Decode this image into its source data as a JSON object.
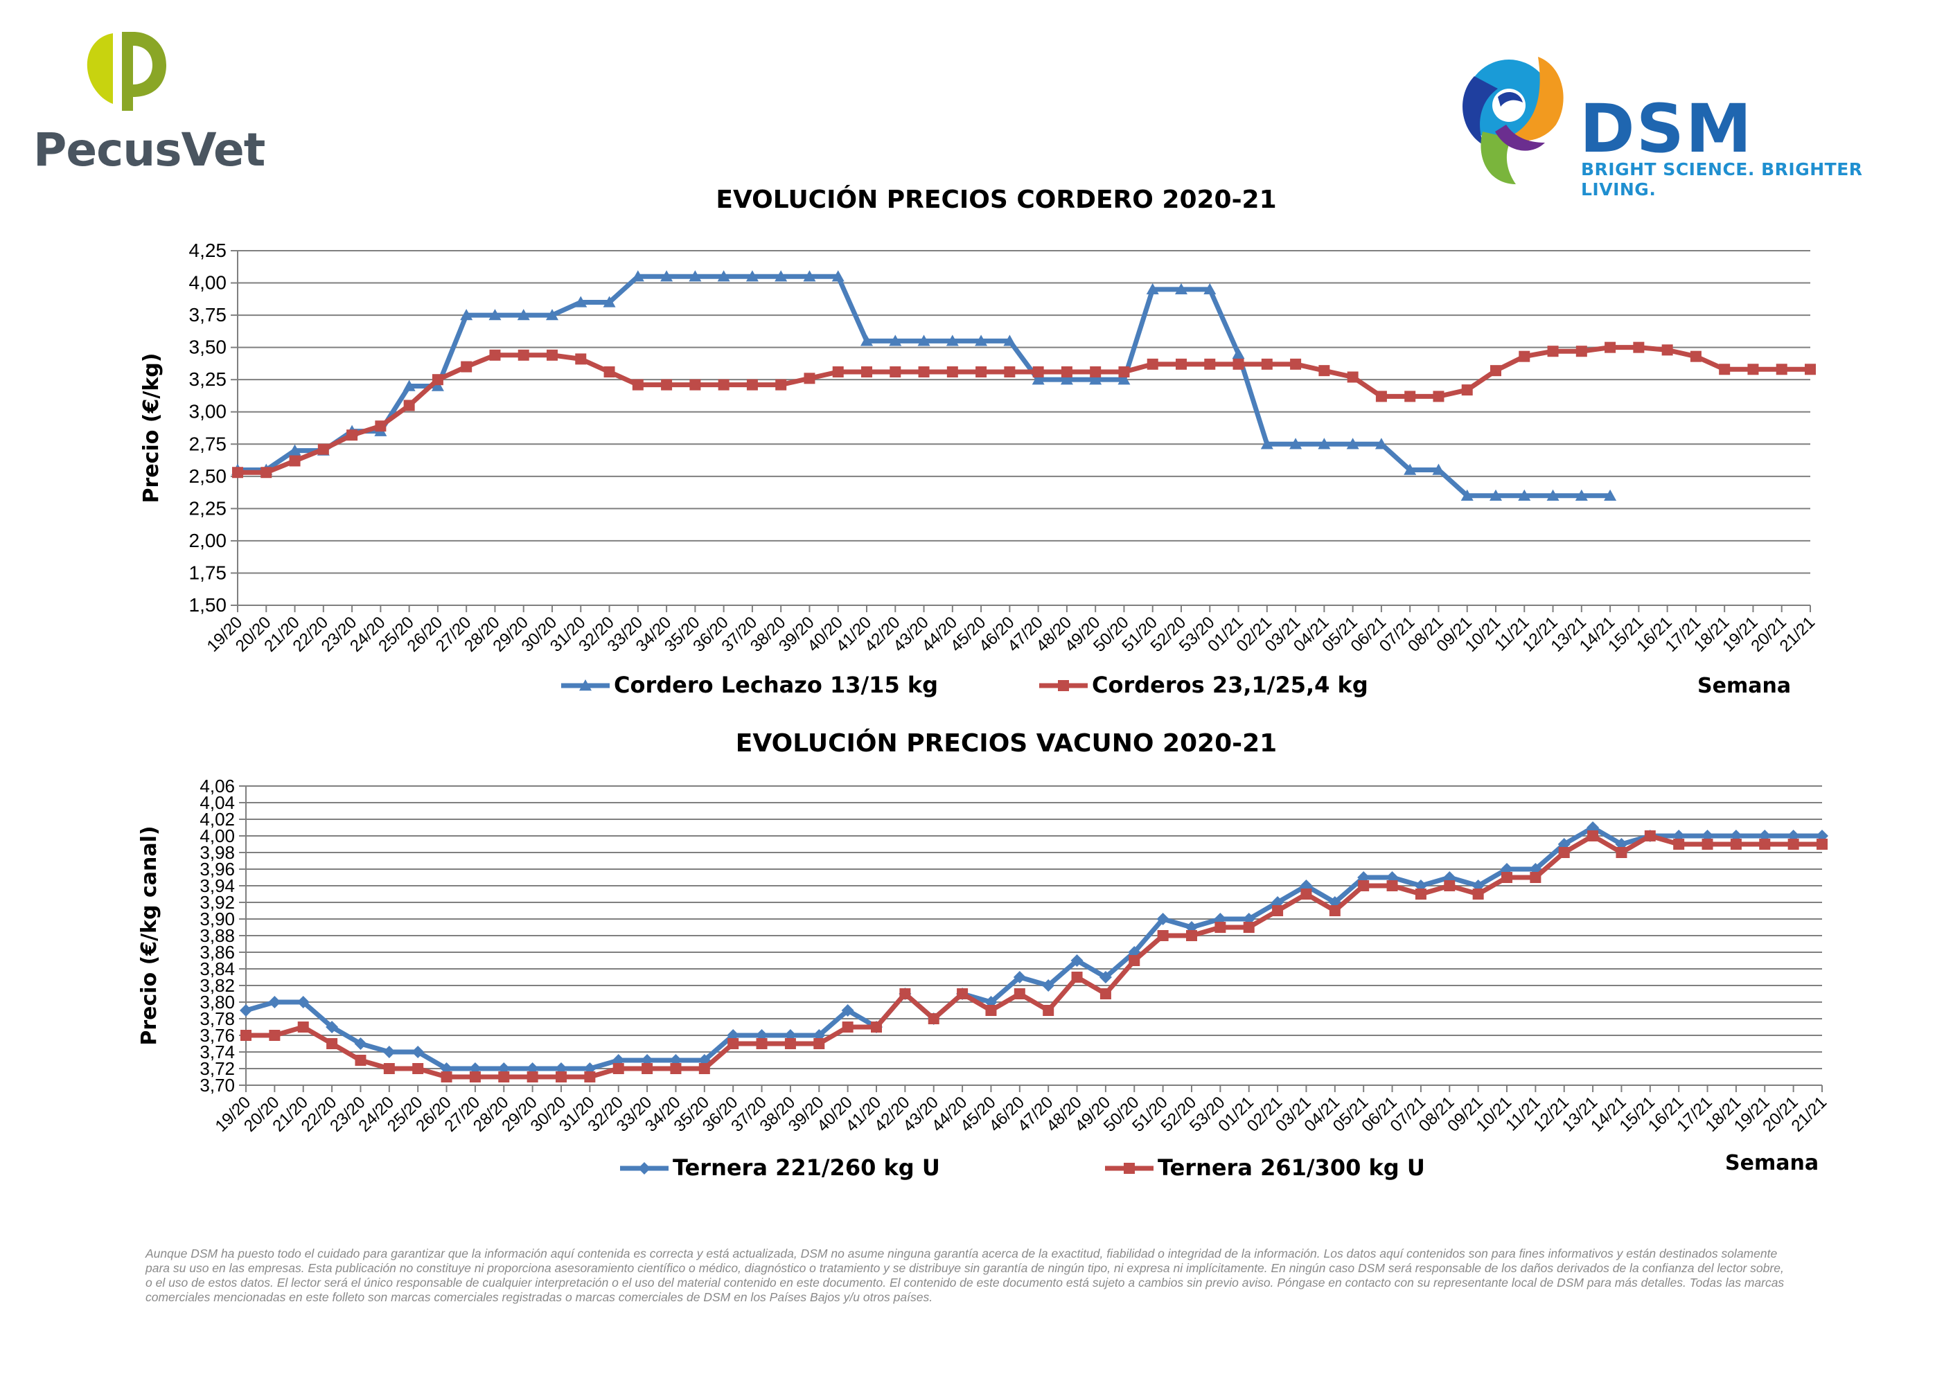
{
  "logos": {
    "left_brand": "PecusVet",
    "right_brand": "DSM",
    "right_tagline": "BRIGHT SCIENCE. BRIGHTER LIVING."
  },
  "disclaimer": "Aunque DSM ha puesto todo el cuidado para garantizar que la información aquí contenida es correcta y está actualizada, DSM no asume ninguna garantía acerca de la exactitud, fiabilidad o integridad de la información. Los datos aquí contenidos son para fines informativos y están destinados solamente para su uso en las empresas. Esta publicación no constituye ni proporciona asesoramiento científico o médico, diagnóstico o tratamiento y se distribuye sin garantía de ningún tipo, ni expresa ni implícitamente. En ningún caso DSM será responsable de los daños derivados de la confianza del lector sobre, o el uso de estos datos. El lector será el único responsable de cualquier interpretación o el uso del material contenido en este documento. El contenido de este documento está sujeto a cambios sin previo aviso. Póngase en contacto con su representante local de DSM para más detalles. Todas las marcas comerciales mencionadas en este folleto son marcas comerciales registradas o marcas comerciales de DSM en los Países Bajos y/u otros países.",
  "chart_data": [
    {
      "type": "line",
      "title": "EVOLUCIÓN PRECIOS CORDERO 2020-21",
      "ylabel": "Precio (€/kg)",
      "xlabel": "Semana",
      "ylim": [
        1.5,
        4.25
      ],
      "yticks": [
        "1,50",
        "1,75",
        "2,00",
        "2,25",
        "2,50",
        "2,75",
        "3,00",
        "3,25",
        "3,50",
        "3,75",
        "4,00",
        "4,25"
      ],
      "grid": true,
      "legend": "bottom",
      "categories": [
        "19/20",
        "20/20",
        "21/20",
        "22/20",
        "23/20",
        "24/20",
        "25/20",
        "26/20",
        "27/20",
        "28/20",
        "29/20",
        "30/20",
        "31/20",
        "32/20",
        "33/20",
        "34/20",
        "35/20",
        "36/20",
        "37/20",
        "38/20",
        "39/20",
        "40/20",
        "41/20",
        "42/20",
        "43/20",
        "44/20",
        "45/20",
        "46/20",
        "47/20",
        "48/20",
        "49/20",
        "50/20",
        "51/20",
        "52/20",
        "53/20",
        "01/21",
        "02/21",
        "03/21",
        "04/21",
        "05/21",
        "06/21",
        "07/21",
        "08/21",
        "09/21",
        "10/21",
        "11/21",
        "12/21",
        "13/21",
        "14/21",
        "15/21",
        "16/21",
        "17/21",
        "18/21",
        "19/21",
        "20/21",
        "21/21"
      ],
      "series": [
        {
          "name": "Cordero Lechazo 13/15 kg",
          "color": "#4a7ebb",
          "marker": "triangle",
          "values": [
            2.55,
            2.55,
            2.7,
            2.7,
            2.85,
            2.85,
            3.2,
            3.2,
            3.75,
            3.75,
            3.75,
            3.75,
            3.85,
            3.85,
            4.05,
            4.05,
            4.05,
            4.05,
            4.05,
            4.05,
            4.05,
            4.05,
            3.55,
            3.55,
            3.55,
            3.55,
            3.55,
            3.55,
            3.25,
            3.25,
            3.25,
            3.25,
            3.95,
            3.95,
            3.95,
            3.45,
            2.75,
            2.75,
            2.75,
            2.75,
            2.75,
            2.55,
            2.55,
            2.35,
            2.35,
            2.35,
            2.35,
            2.35,
            2.35,
            null,
            null,
            null,
            null,
            null,
            null,
            null
          ]
        },
        {
          "name": "Corderos 23,1/25,4 kg",
          "color": "#be4b48",
          "marker": "square",
          "values": [
            2.53,
            2.53,
            2.62,
            2.71,
            2.82,
            2.89,
            3.05,
            3.25,
            3.35,
            3.44,
            3.44,
            3.44,
            3.41,
            3.31,
            3.21,
            3.21,
            3.21,
            3.21,
            3.21,
            3.21,
            3.26,
            3.31,
            3.31,
            3.31,
            3.31,
            3.31,
            3.31,
            3.31,
            3.31,
            3.31,
            3.31,
            3.31,
            3.37,
            3.37,
            3.37,
            3.37,
            3.37,
            3.37,
            3.32,
            3.27,
            3.12,
            3.12,
            3.12,
            3.17,
            3.32,
            3.43,
            3.47,
            3.47,
            3.5,
            3.5,
            3.48,
            3.43,
            3.33,
            3.33,
            3.33,
            3.33
          ]
        }
      ]
    },
    {
      "type": "line",
      "title": "EVOLUCIÓN PRECIOS VACUNO 2020-21",
      "ylabel": "Precio (€/kg canal)",
      "xlabel": "Semana",
      "ylim": [
        3.7,
        4.06
      ],
      "yticks": [
        "3,70",
        "3,72",
        "3,74",
        "3,76",
        "3,78",
        "3,80",
        "3,82",
        "3,84",
        "3,86",
        "3,88",
        "3,90",
        "3,92",
        "3,94",
        "3,96",
        "3,98",
        "4,00",
        "4,02",
        "4,04",
        "4,06"
      ],
      "grid": true,
      "legend": "bottom",
      "categories": [
        "19/20",
        "20/20",
        "21/20",
        "22/20",
        "23/20",
        "24/20",
        "25/20",
        "26/20",
        "27/20",
        "28/20",
        "29/20",
        "30/20",
        "31/20",
        "32/20",
        "33/20",
        "34/20",
        "35/20",
        "36/20",
        "37/20",
        "38/20",
        "39/20",
        "40/20",
        "41/20",
        "42/20",
        "43/20",
        "44/20",
        "45/20",
        "46/20",
        "47/20",
        "48/20",
        "49/20",
        "50/20",
        "51/20",
        "52/20",
        "53/20",
        "01/21",
        "02/21",
        "03/21",
        "04/21",
        "05/21",
        "06/21",
        "07/21",
        "08/21",
        "09/21",
        "10/21",
        "11/21",
        "12/21",
        "13/21",
        "14/21",
        "15/21",
        "16/21",
        "17/21",
        "18/21",
        "19/21",
        "20/21",
        "21/21"
      ],
      "series": [
        {
          "name": "Ternera 221/260 kg U",
          "color": "#4a7ebb",
          "marker": "diamond",
          "values": [
            3.79,
            3.8,
            3.8,
            3.77,
            3.75,
            3.74,
            3.74,
            3.72,
            3.72,
            3.72,
            3.72,
            3.72,
            3.72,
            3.73,
            3.73,
            3.73,
            3.73,
            3.76,
            3.76,
            3.76,
            3.76,
            3.79,
            3.77,
            3.81,
            3.78,
            3.81,
            3.8,
            3.83,
            3.82,
            3.85,
            3.83,
            3.86,
            3.9,
            3.89,
            3.9,
            3.9,
            3.92,
            3.94,
            3.92,
            3.95,
            3.95,
            3.94,
            3.95,
            3.94,
            3.96,
            3.96,
            3.99,
            4.01,
            3.99,
            4.0,
            4.0,
            4.0,
            4.0,
            4.0,
            4.0,
            4.0
          ]
        },
        {
          "name": "Ternera 261/300 kg U",
          "color": "#be4b48",
          "marker": "square",
          "values": [
            3.76,
            3.76,
            3.77,
            3.75,
            3.73,
            3.72,
            3.72,
            3.71,
            3.71,
            3.71,
            3.71,
            3.71,
            3.71,
            3.72,
            3.72,
            3.72,
            3.72,
            3.75,
            3.75,
            3.75,
            3.75,
            3.77,
            3.77,
            3.81,
            3.78,
            3.81,
            3.79,
            3.81,
            3.79,
            3.83,
            3.81,
            3.85,
            3.88,
            3.88,
            3.89,
            3.89,
            3.91,
            3.93,
            3.91,
            3.94,
            3.94,
            3.93,
            3.94,
            3.93,
            3.95,
            3.95,
            3.98,
            4.0,
            3.98,
            4.0,
            3.99,
            3.99,
            3.99,
            3.99,
            3.99,
            3.99
          ]
        }
      ]
    }
  ]
}
